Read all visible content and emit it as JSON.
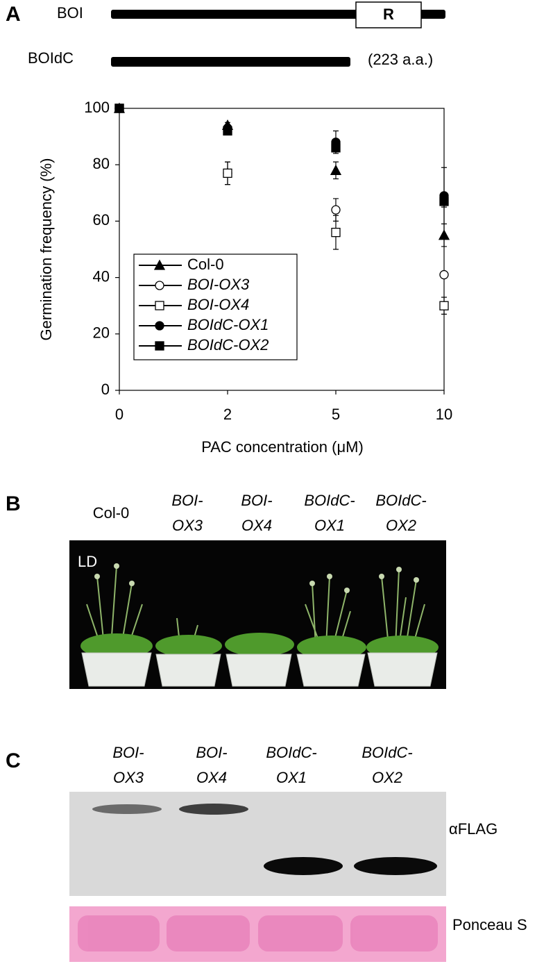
{
  "panels": {
    "a": "A",
    "b": "B",
    "c": "C"
  },
  "diagram": {
    "full_name": "BOI",
    "domain": "R",
    "deleted_name": "BOIdC",
    "deleted_length": "(223 a.a.)"
  },
  "chart_data": {
    "type": "line",
    "ylabel": "Germination frequency (%)",
    "xlabel": "PAC concentration (μM)",
    "categories": [
      "0",
      "2",
      "5",
      "10"
    ],
    "ylim": [
      0,
      100
    ],
    "yticks": [
      0,
      20,
      40,
      60,
      80,
      100
    ],
    "legend": "lower-left",
    "series": [
      {
        "name": "Col-0",
        "color": "#000000",
        "marker": "triangle",
        "marker_filled": true,
        "italic": false,
        "values": [
          100,
          94,
          78,
          55
        ],
        "errors": [
          0,
          1,
          3,
          4
        ]
      },
      {
        "name": "BOI-OX3",
        "color": "#000000",
        "marker": "circle",
        "marker_filled": false,
        "italic": true,
        "values": [
          100,
          77,
          64,
          41
        ],
        "errors": [
          0,
          4,
          4,
          1
        ]
      },
      {
        "name": "BOI-OX4",
        "color": "#000000",
        "marker": "square",
        "marker_filled": false,
        "italic": true,
        "values": [
          100,
          77,
          56,
          30
        ],
        "errors": [
          0,
          4,
          6,
          3
        ]
      },
      {
        "name": "BOIdC-OX1",
        "color": "#000000",
        "marker": "circle",
        "marker_filled": true,
        "italic": true,
        "values": [
          100,
          93,
          88,
          69
        ],
        "errors": [
          0,
          1,
          4,
          10
        ]
      },
      {
        "name": "BOIdC-OX2",
        "color": "#000000",
        "marker": "square",
        "marker_filled": true,
        "italic": true,
        "values": [
          100,
          92,
          86,
          67
        ],
        "errors": [
          0,
          1,
          2,
          2
        ]
      }
    ]
  },
  "photo": {
    "lines": [
      [
        "Col-0"
      ],
      [
        "BOI-",
        "OX3"
      ],
      [
        "BOI-",
        "OX4"
      ],
      [
        "BOIdC-",
        "OX1"
      ],
      [
        "BOIdC-",
        "OX2"
      ]
    ],
    "condition": "LD"
  },
  "blot": {
    "lines": [
      [
        "BOI-",
        "OX3"
      ],
      [
        "BOI-",
        "OX4"
      ],
      [
        "BOIdC-",
        "OX1"
      ],
      [
        "BOIdC-",
        "OX2"
      ]
    ],
    "antibody": "αFLAG",
    "stain": "Ponceau S"
  }
}
